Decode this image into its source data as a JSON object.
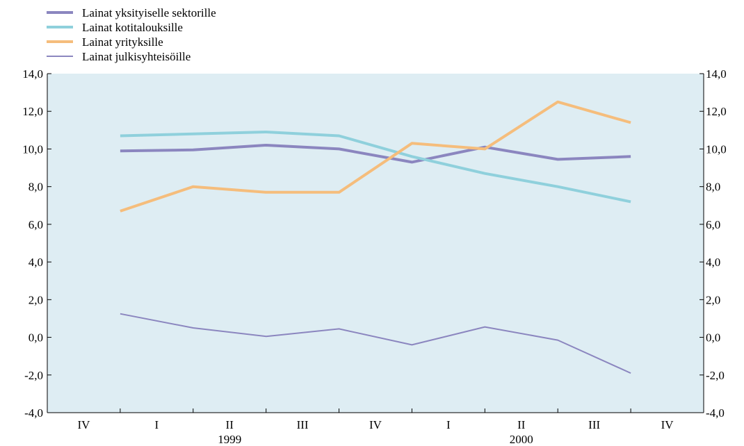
{
  "chart_data": {
    "type": "line",
    "categories": [
      "I",
      "II",
      "III",
      "IV",
      "I",
      "II",
      "III",
      "IV"
    ],
    "year_labels": [
      "1999",
      "2000"
    ],
    "ylim": [
      -4,
      14
    ],
    "y_ticks": [
      -4,
      -2,
      0,
      2,
      4,
      6,
      8,
      10,
      12,
      14
    ],
    "y_tick_labels": [
      "-4,0",
      "-2,0",
      "0,0",
      "2,0",
      "4,0",
      "6,0",
      "8,0",
      "10,0",
      "12,0",
      "14,0"
    ],
    "plot_background": "#deedf3",
    "legend_position": "top-left",
    "series": [
      {
        "name": "Lainat yksityiselle sektorille",
        "color": "#8b86bf",
        "stroke": 4,
        "values": [
          9.9,
          9.95,
          10.2,
          10.0,
          9.3,
          10.1,
          9.45,
          9.6
        ]
      },
      {
        "name": "Lainat kotitalouksille",
        "color": "#8fd0dc",
        "stroke": 4,
        "values": [
          10.7,
          10.8,
          10.9,
          10.7,
          9.6,
          8.7,
          8.0,
          7.2
        ]
      },
      {
        "name": "Lainat yrityksille",
        "color": "#f5bd7c",
        "stroke": 4,
        "values": [
          6.7,
          8.0,
          7.7,
          7.7,
          10.3,
          10.0,
          12.5,
          11.4
        ]
      },
      {
        "name": "Lainat julkisyhteisöille",
        "color": "#8b86bf",
        "stroke": 2,
        "values": [
          1.25,
          0.5,
          0.05,
          0.45,
          -0.4,
          0.55,
          -0.15,
          -1.9
        ]
      }
    ]
  }
}
